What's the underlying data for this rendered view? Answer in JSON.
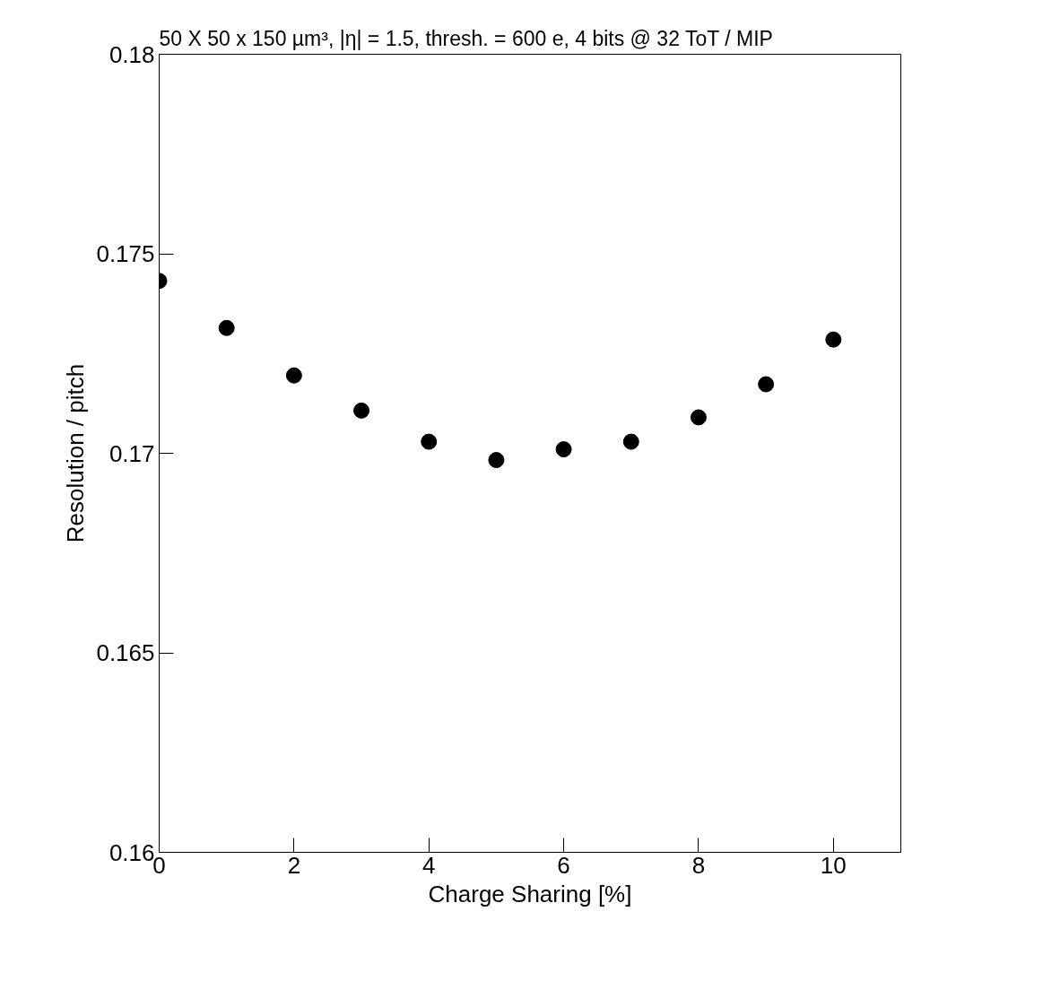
{
  "chart_data": {
    "type": "scatter",
    "subtitle": "50 X 50 x 150 µm³, |η| = 1.5, thresh. = 600 e, 4 bits @ 32 ToT / MIP",
    "xlabel": "Charge Sharing [%]",
    "ylabel": "Resolution / pitch",
    "x": [
      0,
      1,
      2,
      3,
      4,
      5,
      6,
      7,
      8,
      9,
      10
    ],
    "series": [
      {
        "color": "#000000",
        "values": [
          0.17432,
          0.17314,
          0.17195,
          0.17107,
          0.17029,
          0.16983,
          0.1701,
          0.17029,
          0.1709,
          0.17173,
          0.17285
        ]
      }
    ],
    "xlim": [
      0,
      11
    ],
    "xticks": [
      0,
      2,
      4,
      6,
      8,
      10
    ],
    "ylim": [
      0.16,
      0.18
    ],
    "yticks": [
      0.16,
      0.165,
      0.17,
      0.175,
      0.18
    ],
    "grid": false,
    "marker": "circle"
  }
}
